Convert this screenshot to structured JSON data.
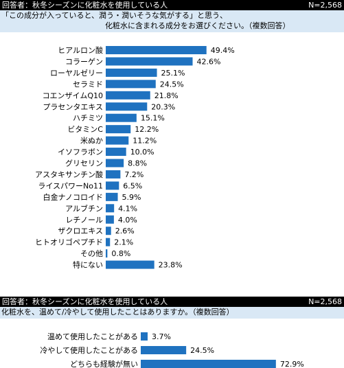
{
  "charts": [
    {
      "header": {
        "respondent": "回答者：秋冬シーズンに化粧水を使用している人",
        "n": "N=2,568"
      },
      "question_line1": "「この成分が入っていると、潤う・潤いそうな気がする」と思う、",
      "question_line2": "化粧水に含まれる成分をお選びください。（複数回答）",
      "bar_color": "#1f72c0"
    },
    {
      "header": {
        "respondent": "回答者：秋冬シーズンに化粧水を使用している人",
        "n": "N=2,568"
      },
      "question_line1": "化粧水を、温めて/冷やして使用したことはありますか。（複数回答）",
      "bar_color": "#1f72c0"
    }
  ],
  "chart_data": [
    {
      "type": "bar",
      "orientation": "horizontal",
      "unit": "%",
      "categories": [
        "ヒアルロン酸",
        "コラーゲン",
        "ローヤルゼリー",
        "セラミド",
        "コエンザイムQ10",
        "プラセンタエキス",
        "ハチミツ",
        "ビタミンC",
        "米ぬか",
        "イソフラボン",
        "グリセリン",
        "アスタキサンチン酸",
        "ライスパワーNo11",
        "白金ナノコロイド",
        "アルブチン",
        "レチノール",
        "ザクロエキス",
        "ヒトオリゴペプチド",
        "その他",
        "特にない"
      ],
      "values": [
        49.4,
        42.6,
        25.1,
        24.5,
        21.8,
        20.3,
        15.1,
        12.2,
        11.2,
        10.0,
        8.8,
        7.2,
        6.5,
        5.9,
        4.1,
        4.0,
        2.6,
        2.1,
        0.8,
        23.8
      ],
      "labels": [
        "49.4%",
        "42.6%",
        "25.1%",
        "24.5%",
        "21.8%",
        "20.3%",
        "15.1%",
        "12.2%",
        "11.2%",
        "10.0%",
        "8.8%",
        "7.2%",
        "6.5%",
        "5.9%",
        "4.1%",
        "4.0%",
        "2.6%",
        "2.1%",
        "0.8%",
        "23.8%"
      ],
      "xlim": [
        0,
        100
      ]
    },
    {
      "type": "bar",
      "orientation": "horizontal",
      "unit": "%",
      "categories": [
        "温めて使用したことがある",
        "冷やして使用したことがある",
        "どちらも経験が無い"
      ],
      "values": [
        3.7,
        24.5,
        72.9
      ],
      "labels": [
        "3.7%",
        "24.5%",
        "72.9%"
      ],
      "xlim": [
        0,
        100
      ]
    }
  ]
}
